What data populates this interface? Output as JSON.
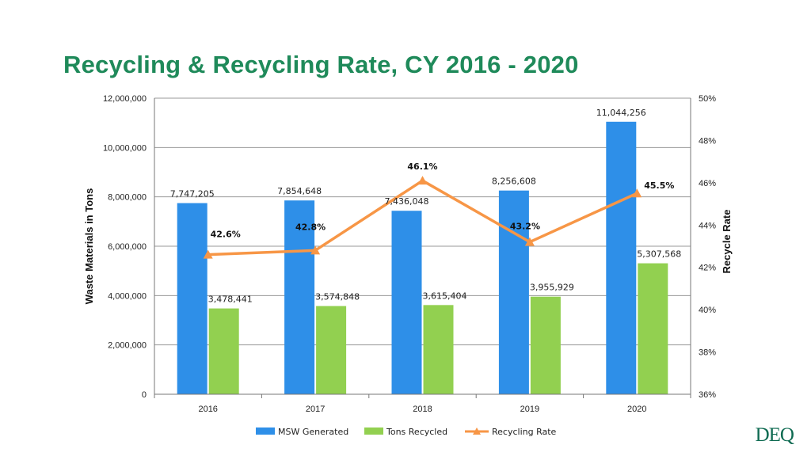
{
  "slide": {
    "title": "Recycling & Recycling Rate, CY 2016 - 2020",
    "logo_text": "DEQ",
    "title_color": "#1f8a5a"
  },
  "chart_data": {
    "type": "bar",
    "categories": [
      "2016",
      "2017",
      "2018",
      "2019",
      "2020"
    ],
    "series": [
      {
        "name": "MSW Generated",
        "type": "bar",
        "axis": "left",
        "color": "#2e8fe8",
        "values": [
          7747205,
          7854648,
          7436048,
          8256608,
          11044256
        ],
        "labels": [
          "7,747,205",
          "7,854,648",
          "7,436,048",
          "8,256,608",
          "11,044,256"
        ]
      },
      {
        "name": "Tons Recycled",
        "type": "bar",
        "axis": "left",
        "color": "#92d050",
        "values": [
          3478441,
          3574848,
          3615404,
          3955929,
          5307568
        ],
        "labels": [
          "3,478,441",
          "3,574,848",
          "3,615,404",
          "3,955,929",
          "5,307,568"
        ]
      },
      {
        "name": "Recycling Rate",
        "type": "line",
        "axis": "right",
        "color": "#f79646",
        "values": [
          42.6,
          42.8,
          46.1,
          43.2,
          45.5
        ],
        "labels": [
          "42.6%",
          "42.8%",
          "46.1%",
          "43.2%",
          "45.5%"
        ]
      }
    ],
    "ylabel": "Waste Materials in Tons",
    "ylim": [
      0,
      12000000
    ],
    "yticks": [
      0,
      2000000,
      4000000,
      6000000,
      8000000,
      10000000,
      12000000
    ],
    "ytick_labels": [
      "0",
      "2,000,000",
      "4,000,000",
      "6,000,000",
      "8,000,000",
      "10,000,000",
      "12,000,000"
    ],
    "y2label": "Recycle Rate",
    "y2lim": [
      36,
      50
    ],
    "y2ticks": [
      36,
      38,
      40,
      42,
      44,
      46,
      48,
      50
    ],
    "y2tick_labels": [
      "36%",
      "38%",
      "40%",
      "42%",
      "44%",
      "46%",
      "48%",
      "50%"
    ],
    "grid": true,
    "legend_position": "bottom"
  }
}
